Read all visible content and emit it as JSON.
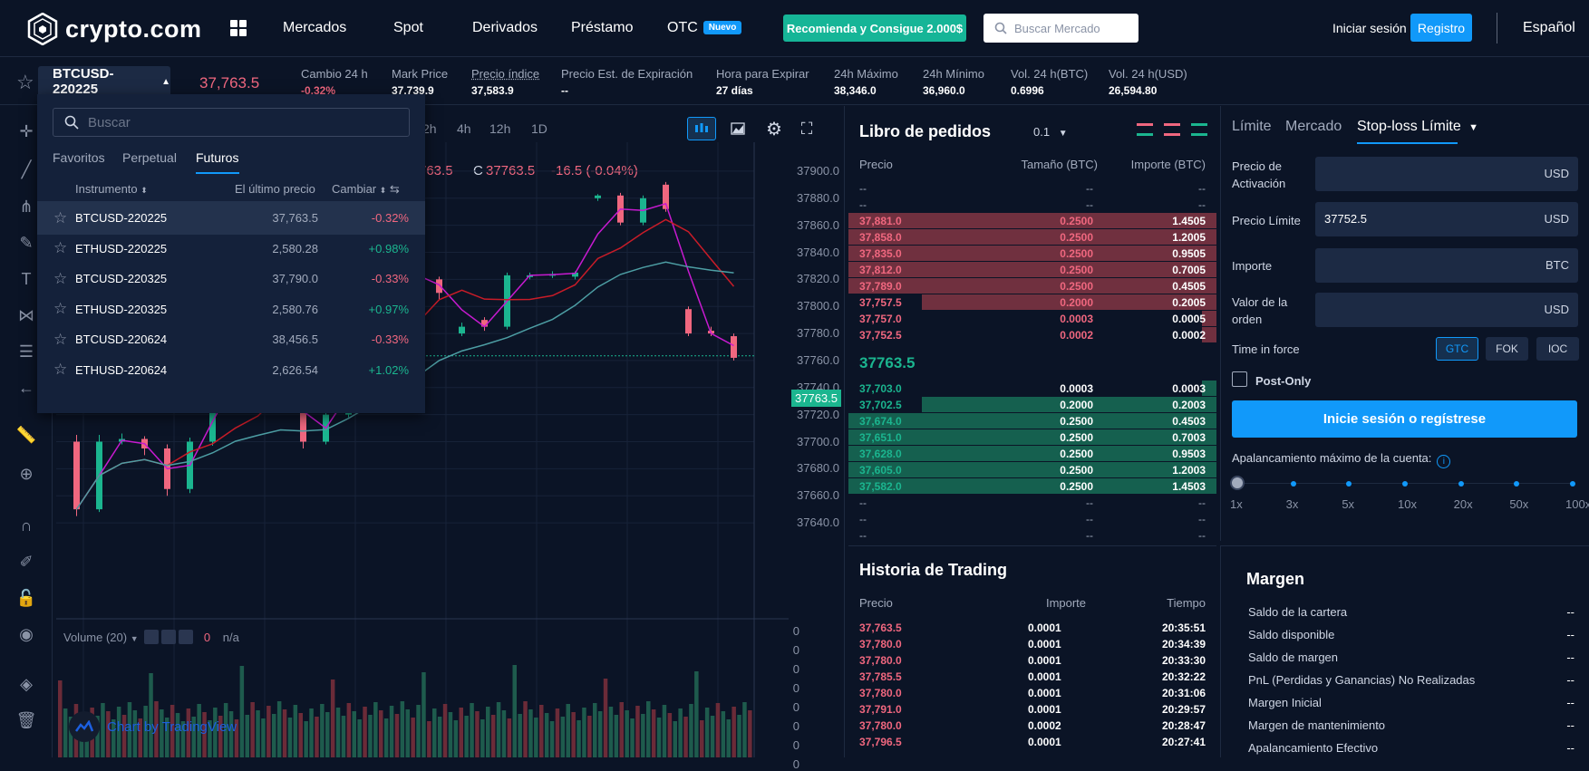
{
  "header": {
    "brand": "crypto.com",
    "nav": [
      {
        "label": "Mercados"
      },
      {
        "label": "Spot"
      },
      {
        "label": "Derivados"
      },
      {
        "label": "Préstamo"
      },
      {
        "label": "OTC",
        "badge": "Nuevo"
      }
    ],
    "promo": "Recomienda y Consigue 2.000$",
    "search_placeholder": "Buscar Mercado",
    "login": "Iniciar sesión",
    "register": "Registro",
    "language": "Español"
  },
  "ticker": {
    "symbol": "BTCUSD-220225",
    "last_price": "37,763.5",
    "stats": [
      {
        "label": "Cambio 24 h",
        "value": "-0.32%",
        "negative": true
      },
      {
        "label": "Mark Price",
        "value": "37,739.9"
      },
      {
        "label": "Precio índice",
        "value": "37,583.9"
      },
      {
        "label": "Precio Est. de Expiración",
        "value": "--"
      },
      {
        "label": "Hora para Expirar",
        "value": "27 días"
      },
      {
        "label": "24h Máximo",
        "value": "38,346.0"
      },
      {
        "label": "24h Mínimo",
        "value": "36,960.0"
      },
      {
        "label": "Vol. 24 h(BTC)",
        "value": "0.6996"
      },
      {
        "label": "Vol. 24 h(USD)",
        "value": "26,594.80"
      }
    ]
  },
  "dropdown": {
    "search_placeholder": "Buscar",
    "tabs": [
      "Favoritos",
      "Perpetual",
      "Futuros"
    ],
    "active_tab": "Futuros",
    "columns": [
      "Instrumento",
      "El último precio",
      "Cambiar"
    ],
    "rows": [
      {
        "instrument": "BTCUSD-220225",
        "last": "37,763.5",
        "change": "-0.32%",
        "up": false
      },
      {
        "instrument": "ETHUSD-220225",
        "last": "2,580.28",
        "change": "+0.98%",
        "up": true
      },
      {
        "instrument": "BTCUSD-220325",
        "last": "37,790.0",
        "change": "-0.33%",
        "up": false
      },
      {
        "instrument": "ETHUSD-220325",
        "last": "2,580.76",
        "change": "+0.97%",
        "up": true
      },
      {
        "instrument": "BTCUSD-220624",
        "last": "38,456.5",
        "change": "-0.33%",
        "up": false
      },
      {
        "instrument": "ETHUSD-220624",
        "last": "2,626.54",
        "change": "+1.02%",
        "up": true
      }
    ]
  },
  "chart": {
    "timeframes": [
      "2h",
      "4h",
      "12h",
      "1D"
    ],
    "ohlc_close_prefix": "763.5",
    "ohlc_c_label": "C",
    "ohlc_c": "37763.5",
    "ohlc_change": "-16.5 (-0.04%)",
    "current_price_tag": "37763.5",
    "volume_label": "Volume (20)",
    "volume_value": "0",
    "volume_na": "n/a",
    "attribution": "Chart by TradingView"
  },
  "chart_data": {
    "type": "candlestick",
    "ylim": [
      37630,
      37910
    ],
    "y_ticks": [
      37900.0,
      37880.0,
      37860.0,
      37840.0,
      37820.0,
      37800.0,
      37780.0,
      37760.0,
      37740.0,
      37720.0,
      37700.0,
      37680.0,
      37660.0,
      37640.0
    ],
    "volume_ticks": [
      0,
      0,
      0,
      0,
      0,
      0,
      0,
      0
    ],
    "candles": [
      {
        "o": 37700,
        "c": 37650,
        "h": 37705,
        "l": 37645
      },
      {
        "o": 37650,
        "c": 37700,
        "h": 37705,
        "l": 37648
      },
      {
        "o": 37700,
        "c": 37702,
        "h": 37706,
        "l": 37698
      },
      {
        "o": 37702,
        "c": 37695,
        "h": 37704,
        "l": 37690
      },
      {
        "o": 37695,
        "c": 37665,
        "h": 37698,
        "l": 37660
      },
      {
        "o": 37665,
        "c": 37700,
        "h": 37703,
        "l": 37662
      },
      {
        "o": 37700,
        "c": 37730,
        "h": 37735,
        "l": 37697
      },
      {
        "o": 37730,
        "c": 37760,
        "h": 37765,
        "l": 37728
      },
      {
        "o": 37760,
        "c": 37740,
        "h": 37762,
        "l": 37735
      },
      {
        "o": 37740,
        "c": 37745,
        "h": 37748,
        "l": 37738
      },
      {
        "o": 37745,
        "c": 37700,
        "h": 37750,
        "l": 37695
      },
      {
        "o": 37700,
        "c": 37720,
        "h": 37725,
        "l": 37698
      },
      {
        "o": 37720,
        "c": 37750,
        "h": 37755,
        "l": 37718
      },
      {
        "o": 37872,
        "c": 37818,
        "h": 37875,
        "l": 37815
      },
      {
        "o": 37818,
        "c": 37825,
        "h": 37828,
        "l": 37815
      },
      {
        "o": 37825,
        "c": 37822,
        "h": 37828,
        "l": 37820
      },
      {
        "o": 37820,
        "c": 37810,
        "h": 37822,
        "l": 37805
      },
      {
        "o": 37780,
        "c": 37785,
        "h": 37788,
        "l": 37778
      },
      {
        "o": 37790,
        "c": 37785,
        "h": 37792,
        "l": 37782
      },
      {
        "o": 37785,
        "c": 37823,
        "h": 37825,
        "l": 37783
      },
      {
        "o": 37822,
        "c": 37823,
        "h": 37825,
        "l": 37820
      },
      {
        "o": 37823,
        "c": 37824,
        "h": 37826,
        "l": 37821
      },
      {
        "o": 37822,
        "c": 37825,
        "h": 37826,
        "l": 37820
      },
      {
        "o": 37880,
        "c": 37882,
        "h": 37883,
        "l": 37878
      },
      {
        "o": 37882,
        "c": 37862,
        "h": 37884,
        "l": 37860
      },
      {
        "o": 37862,
        "c": 37880,
        "h": 37882,
        "l": 37860
      },
      {
        "o": 37890,
        "c": 37872,
        "h": 37892,
        "l": 37870
      },
      {
        "o": 37798,
        "c": 37780,
        "h": 37800,
        "l": 37778
      },
      {
        "o": 37782,
        "c": 37780,
        "h": 37785,
        "l": 37778
      },
      {
        "o": 37778,
        "c": 37762,
        "h": 37780,
        "l": 37760
      }
    ],
    "series": [
      {
        "name": "",
        "color": "#c71ad0"
      },
      {
        "name": "",
        "color": "#c81c28"
      },
      {
        "name": "",
        "color": "#4d9ea4"
      }
    ]
  },
  "orderbook": {
    "title": "Libro de pedidos",
    "step": "0.1",
    "columns": [
      "Precio",
      "Tamaño (BTC)",
      "Importe (BTC)"
    ],
    "empty_top": [
      "--",
      "--",
      "--",
      "--",
      "--",
      "--"
    ],
    "asks": [
      {
        "price": "37,881.0",
        "size": "0.2500",
        "amount": "1.4505",
        "depth": 1.0
      },
      {
        "price": "37,858.0",
        "size": "0.2500",
        "amount": "1.2005",
        "depth": 1.0
      },
      {
        "price": "37,835.0",
        "size": "0.2500",
        "amount": "0.9505",
        "depth": 1.0
      },
      {
        "price": "37,812.0",
        "size": "0.2500",
        "amount": "0.7005",
        "depth": 1.0
      },
      {
        "price": "37,789.0",
        "size": "0.2500",
        "amount": "0.4505",
        "depth": 1.0
      },
      {
        "price": "37,757.5",
        "size": "0.2000",
        "amount": "0.2005",
        "depth": 0.8
      },
      {
        "price": "37,757.0",
        "size": "0.0003",
        "amount": "0.0005",
        "depth": 0.04
      },
      {
        "price": "37,752.5",
        "size": "0.0002",
        "amount": "0.0002",
        "depth": 0.04
      }
    ],
    "mid_price": "37763.5",
    "bids": [
      {
        "price": "37,703.0",
        "size": "0.0003",
        "amount": "0.0003",
        "depth": 0.04
      },
      {
        "price": "37,702.5",
        "size": "0.2000",
        "amount": "0.2003",
        "depth": 0.8
      },
      {
        "price": "37,674.0",
        "size": "0.2500",
        "amount": "0.4503",
        "depth": 1.0
      },
      {
        "price": "37,651.0",
        "size": "0.2500",
        "amount": "0.7003",
        "depth": 1.0
      },
      {
        "price": "37,628.0",
        "size": "0.2500",
        "amount": "0.9503",
        "depth": 1.0
      },
      {
        "price": "37,605.0",
        "size": "0.2500",
        "amount": "1.2003",
        "depth": 1.0
      },
      {
        "price": "37,582.0",
        "size": "0.2500",
        "amount": "1.4503",
        "depth": 1.0
      }
    ],
    "empty_bottom": [
      "--",
      "--",
      "--",
      "--",
      "--",
      "--",
      "--",
      "--",
      "--"
    ]
  },
  "trade_history": {
    "title": "Historia de Trading",
    "columns": [
      "Precio",
      "Importe",
      "Tiempo"
    ],
    "rows": [
      {
        "price": "37,763.5",
        "amount": "0.0001",
        "time": "20:35:51"
      },
      {
        "price": "37,780.0",
        "amount": "0.0001",
        "time": "20:34:39"
      },
      {
        "price": "37,780.0",
        "amount": "0.0001",
        "time": "20:33:30"
      },
      {
        "price": "37,785.5",
        "amount": "0.0001",
        "time": "20:32:22"
      },
      {
        "price": "37,780.0",
        "amount": "0.0001",
        "time": "20:31:06"
      },
      {
        "price": "37,791.0",
        "amount": "0.0001",
        "time": "20:29:57"
      },
      {
        "price": "37,780.0",
        "amount": "0.0002",
        "time": "20:28:47"
      },
      {
        "price": "37,796.5",
        "amount": "0.0001",
        "time": "20:27:41"
      }
    ]
  },
  "order_form": {
    "tabs": [
      "Límite",
      "Mercado",
      "Stop-loss Límite"
    ],
    "active_tab": "Stop-loss Límite",
    "fields": [
      {
        "label_1": "Precio de",
        "label_2": "Activación",
        "value": "",
        "unit": "USD"
      },
      {
        "label_1": "Precio Límite",
        "label_2": "",
        "value": "37752.5",
        "unit": "USD"
      },
      {
        "label_1": "Importe",
        "label_2": "",
        "value": "",
        "unit": "BTC"
      },
      {
        "label_1": "Valor de la",
        "label_2": "orden",
        "value": "",
        "unit": "USD"
      }
    ],
    "time_in_force_label": "Time in force",
    "tif_options": [
      "GTC",
      "FOK",
      "IOC"
    ],
    "tif_active": "GTC",
    "post_only": "Post-Only",
    "submit": "Inicie sesión o regístrese",
    "leverage_label": "Apalancamiento máximo de la cuenta:",
    "leverage_ticks": [
      "1x",
      "3x",
      "5x",
      "10x",
      "20x",
      "50x",
      "100x"
    ],
    "leverage_value": "1x"
  },
  "margin": {
    "title": "Margen",
    "rows": [
      {
        "label": "Saldo de la cartera",
        "value": "--"
      },
      {
        "label": "Saldo disponible",
        "value": "--"
      },
      {
        "label": "Saldo de margen",
        "value": "--"
      },
      {
        "label": "PnL (Perdidas y Ganancias) No Realizadas",
        "value": "--"
      },
      {
        "label": "Margen Inicial",
        "value": "--"
      },
      {
        "label": "Margen de mantenimiento",
        "value": "--"
      },
      {
        "label": "Apalancamiento Efectivo",
        "value": "--"
      }
    ]
  }
}
